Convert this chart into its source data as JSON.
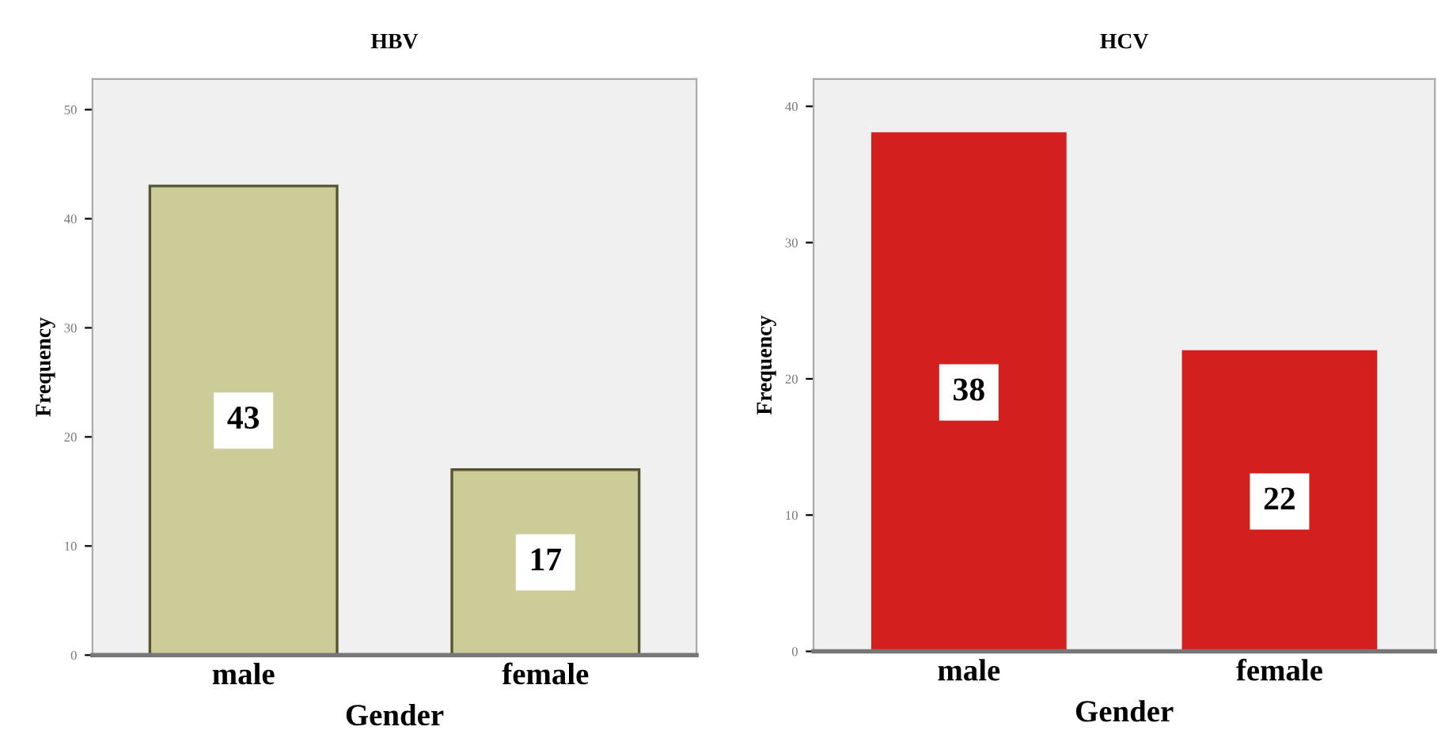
{
  "chart_data": [
    {
      "type": "bar",
      "title": "HBV",
      "xlabel": "Gender",
      "ylabel": "Frequency",
      "categories": [
        "male",
        "female"
      ],
      "series": [
        {
          "color": "#cccc99",
          "values": [
            43,
            17
          ]
        }
      ],
      "ylim": [
        0,
        52.8
      ],
      "yticks": [
        0,
        10,
        20,
        30,
        40,
        50
      ],
      "data_labels": true,
      "grid": false,
      "legend": false
    },
    {
      "type": "bar",
      "title": "HCV",
      "xlabel": "Gender",
      "ylabel": "Frequency",
      "categories": [
        "male",
        "female"
      ],
      "series": [
        {
          "color": "#d41f1f",
          "values": [
            38,
            22
          ]
        }
      ],
      "ylim": [
        0,
        42
      ],
      "yticks": [
        0,
        10,
        20,
        30,
        40
      ],
      "data_labels": true,
      "grid": false,
      "legend": false
    }
  ]
}
